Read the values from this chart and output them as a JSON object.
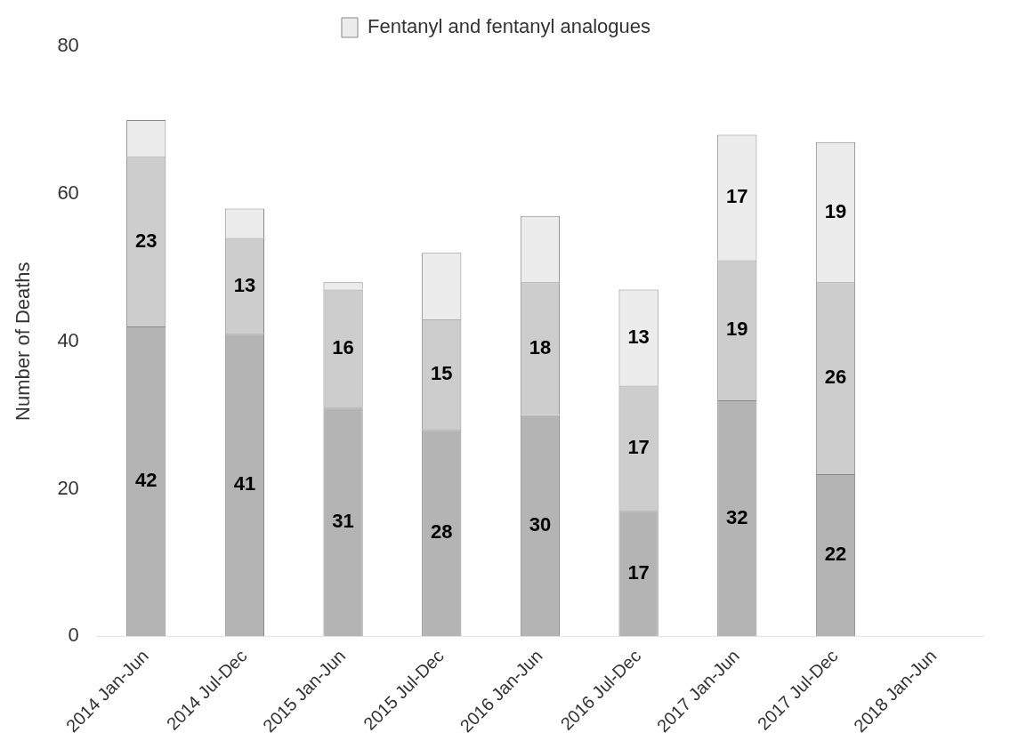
{
  "chart_data": {
    "type": "bar",
    "stacked": true,
    "ylabel": "Number of Deaths",
    "legend": "top",
    "grid": false,
    "categories": [
      "2014 Jan-Jun",
      "2014 Jul-Dec",
      "2015 Jan-Jun",
      "2015 Jul-Dec",
      "2016 Jan-Jun",
      "2016 Jul-Dec",
      "2017 Jan-Jun",
      "2017 Jul-Dec",
      "2018 Jan-Jun"
    ],
    "ylim": [
      0,
      80
    ],
    "yticks": [
      0,
      20,
      40,
      60,
      80
    ],
    "series": [
      {
        "color": "#b4b4b4",
        "values": [
          42,
          41,
          31,
          28,
          30,
          17,
          32,
          22,
          null
        ],
        "value_labels": [
          "42",
          "41",
          "31",
          "28",
          "30",
          "17",
          "32",
          "22",
          null
        ]
      },
      {
        "color": "#cdcdcd",
        "values": [
          23,
          13,
          16,
          15,
          18,
          17,
          19,
          26,
          null
        ],
        "value_labels": [
          "23",
          "13",
          "16",
          "15",
          "18",
          "17",
          "19",
          "26",
          null
        ]
      },
      {
        "name": "Fentanyl and fentanyl analogues",
        "color": "#ececec",
        "values": [
          5,
          4,
          1,
          9,
          9,
          13,
          17,
          19,
          null
        ],
        "value_labels": [
          null,
          null,
          null,
          null,
          null,
          "13",
          "17",
          "19",
          null
        ]
      }
    ]
  }
}
